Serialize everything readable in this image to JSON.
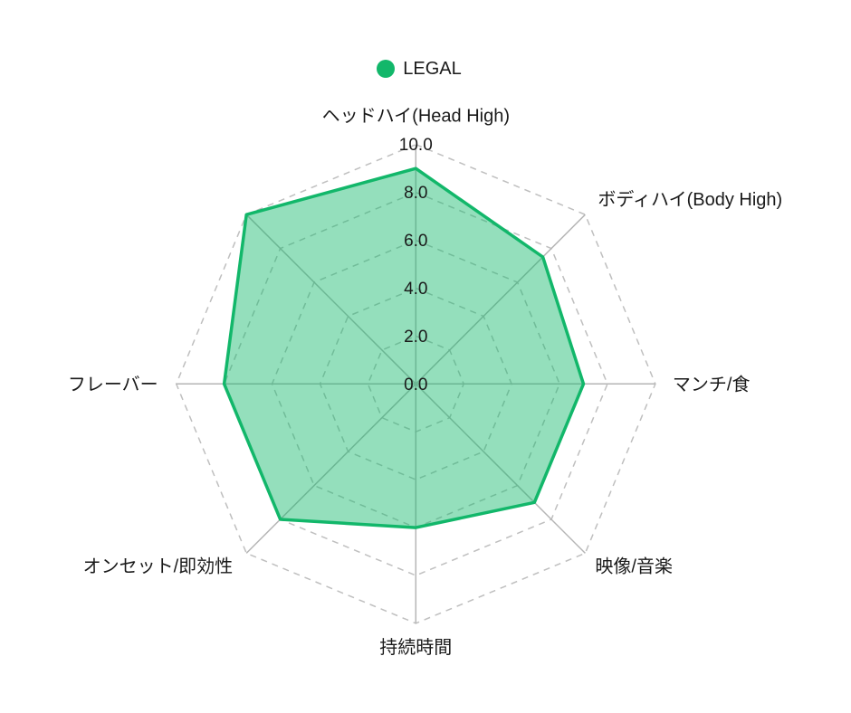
{
  "legend": {
    "items": [
      {
        "label": "LEGAL",
        "color": "#12b76a"
      }
    ]
  },
  "chart_data": {
    "type": "radar",
    "title": "",
    "categories": [
      "ヘッドハイ(Head High)",
      "ボディハイ(Body High)",
      "マンチ/食",
      "映像/音楽",
      "持続時間",
      "オンセット/即効性",
      "フレーバー",
      ""
    ],
    "series": [
      {
        "name": "LEGAL",
        "values": [
          9.0,
          7.5,
          7.0,
          7.0,
          6.0,
          8.0,
          8.0,
          10.0
        ],
        "line_color": "#12b76a",
        "fill_color": "rgba(18,183,106,0.45)"
      }
    ],
    "ticks": [
      "0.0",
      "2.0",
      "4.0",
      "6.0",
      "8.0",
      "10.0"
    ],
    "tick_values": [
      0,
      2,
      4,
      6,
      8,
      10
    ],
    "rlim": [
      0,
      10
    ],
    "grid": {
      "ring_color": "#bfbfbf",
      "axis_color": "#b5b5b5",
      "rings_dashed": true,
      "shape": "polygon"
    },
    "text_color": "#1a1a1a",
    "legend_position": "top"
  }
}
